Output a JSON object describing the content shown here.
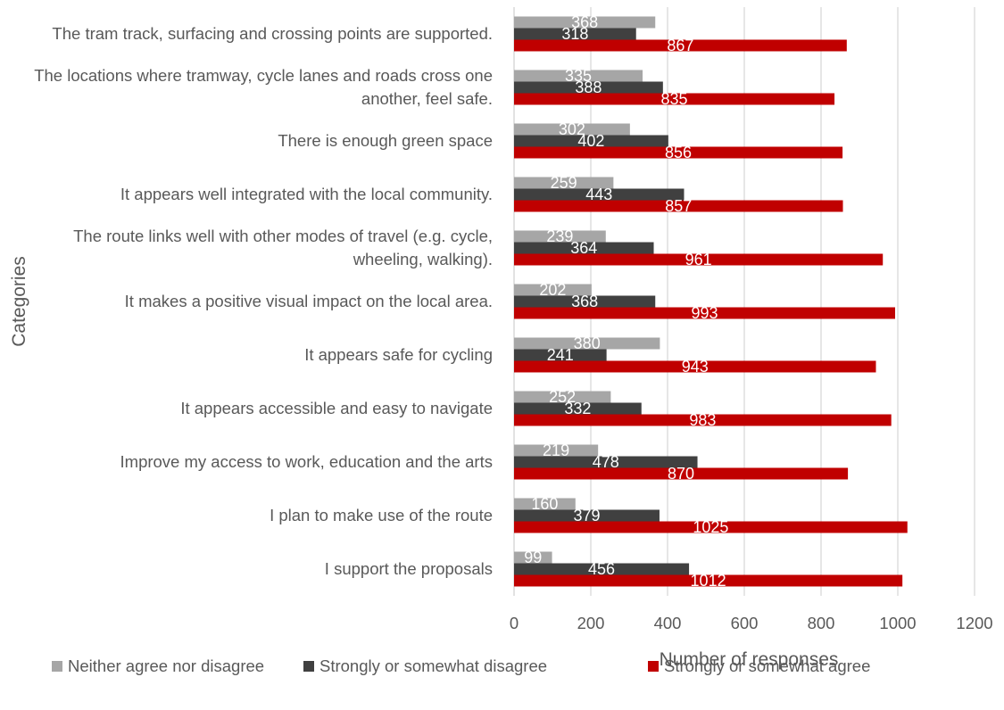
{
  "chart_data": {
    "type": "bar",
    "orientation": "horizontal",
    "categories": [
      "The tram track, surfacing and crossing points are supported.",
      "The locations where tramway, cycle lanes and roads cross one another, feel safe.",
      "There is enough green space",
      "It appears well integrated with the local community.",
      "The route links well with other modes of travel (e.g. cycle, wheeling, walking).",
      "It makes a positive visual impact on the local area.",
      "It appears safe for cycling",
      "It appears accessible and easy to navigate",
      "Improve my access to work, education and the arts",
      "I plan to make use of the route",
      "I support the proposals"
    ],
    "series": [
      {
        "name": "Neither agree nor disagree",
        "color": "#a6a6a6",
        "values": [
          368,
          335,
          302,
          259,
          239,
          202,
          380,
          252,
          219,
          160,
          99
        ]
      },
      {
        "name": "Strongly or somewhat disagree",
        "color": "#404040",
        "values": [
          318,
          388,
          402,
          443,
          364,
          368,
          241,
          332,
          478,
          379,
          456
        ]
      },
      {
        "name": "Strongly or somewhat agree",
        "color": "#c00000",
        "values": [
          867,
          835,
          856,
          857,
          961,
          993,
          943,
          983,
          870,
          1025,
          1012
        ]
      }
    ],
    "xlabel": "Number of responses",
    "ylabel": "Categories",
    "xlim": [
      0,
      1200
    ],
    "xticks": [
      0,
      200,
      400,
      600,
      800,
      1000,
      1200
    ],
    "grid": true,
    "legend_position": "bottom",
    "data_labels": true
  }
}
